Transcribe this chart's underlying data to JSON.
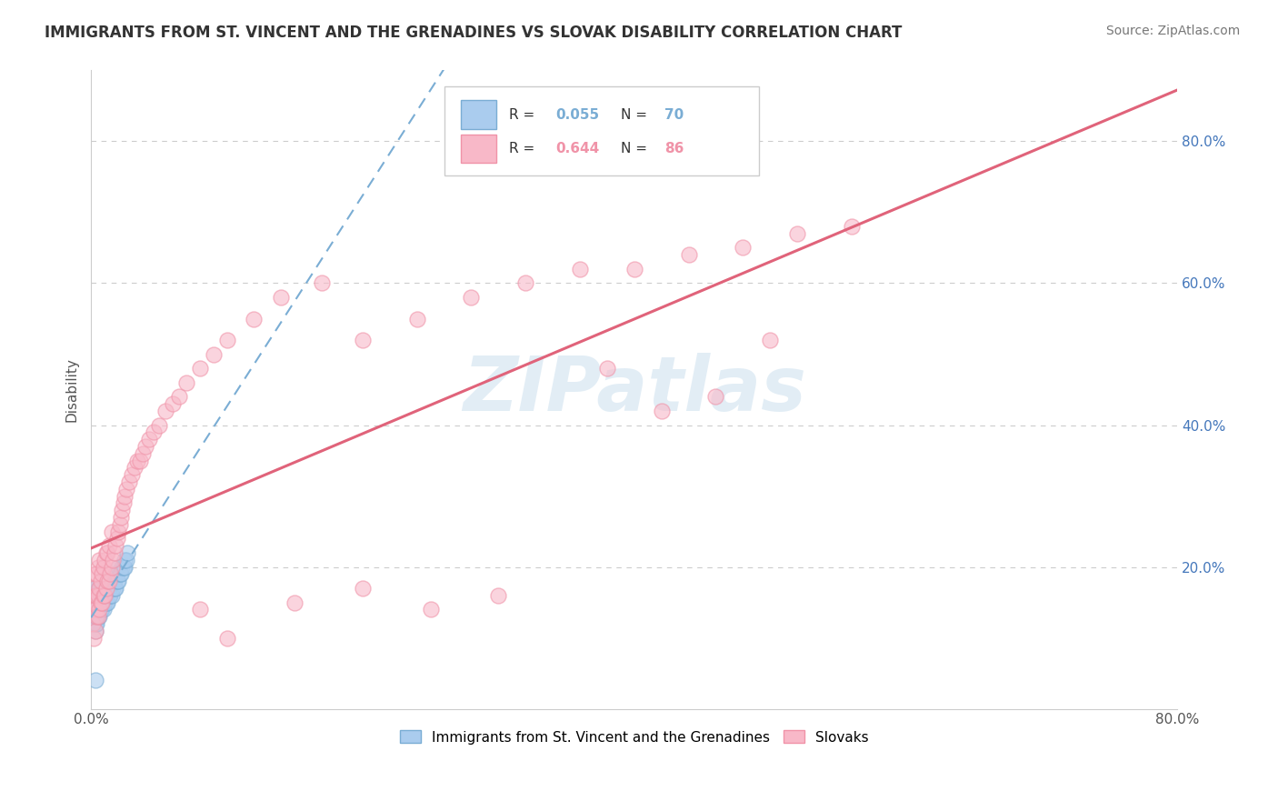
{
  "title": "IMMIGRANTS FROM ST. VINCENT AND THE GRENADINES VS SLOVAK DISABILITY CORRELATION CHART",
  "source": "Source: ZipAtlas.com",
  "ylabel": "Disability",
  "blue_label": "Immigrants from St. Vincent and the Grenadines",
  "pink_label": "Slovaks",
  "blue_R": 0.055,
  "blue_N": 70,
  "pink_R": 0.644,
  "pink_N": 86,
  "blue_color": "#7aadd4",
  "pink_color": "#f093a8",
  "trend_blue_color": "#7aadd4",
  "trend_pink_color": "#e0637a",
  "xlim": [
    0.0,
    0.8
  ],
  "ylim": [
    0.0,
    0.9
  ],
  "xtick_vals": [
    0.0,
    0.8
  ],
  "xtick_labels": [
    "0.0%",
    "80.0%"
  ],
  "ytick_vals": [
    0.2,
    0.4,
    0.6,
    0.8
  ],
  "ytick_labels": [
    "20.0%",
    "40.0%",
    "60.0%",
    "80.0%"
  ],
  "watermark": "ZIPatlas",
  "background_color": "#ffffff",
  "grid_color": "#cccccc",
  "blue_x": [
    0.001,
    0.001,
    0.002,
    0.002,
    0.002,
    0.002,
    0.002,
    0.003,
    0.003,
    0.003,
    0.003,
    0.003,
    0.003,
    0.003,
    0.004,
    0.004,
    0.004,
    0.004,
    0.004,
    0.005,
    0.005,
    0.005,
    0.005,
    0.005,
    0.006,
    0.006,
    0.006,
    0.006,
    0.007,
    0.007,
    0.007,
    0.007,
    0.008,
    0.008,
    0.008,
    0.009,
    0.009,
    0.009,
    0.01,
    0.01,
    0.01,
    0.011,
    0.011,
    0.012,
    0.012,
    0.013,
    0.013,
    0.014,
    0.014,
    0.015,
    0.015,
    0.016,
    0.016,
    0.017,
    0.017,
    0.018,
    0.018,
    0.019,
    0.019,
    0.02,
    0.02,
    0.021,
    0.022,
    0.023,
    0.024,
    0.025,
    0.025,
    0.026,
    0.027,
    0.003
  ],
  "blue_y": [
    0.14,
    0.16,
    0.12,
    0.13,
    0.14,
    0.15,
    0.16,
    0.11,
    0.12,
    0.13,
    0.14,
    0.15,
    0.16,
    0.17,
    0.12,
    0.13,
    0.14,
    0.15,
    0.16,
    0.13,
    0.14,
    0.15,
    0.16,
    0.17,
    0.13,
    0.14,
    0.15,
    0.16,
    0.14,
    0.15,
    0.16,
    0.17,
    0.14,
    0.15,
    0.16,
    0.14,
    0.15,
    0.16,
    0.15,
    0.16,
    0.17,
    0.15,
    0.17,
    0.15,
    0.17,
    0.16,
    0.17,
    0.16,
    0.18,
    0.16,
    0.18,
    0.17,
    0.18,
    0.17,
    0.18,
    0.17,
    0.19,
    0.18,
    0.19,
    0.18,
    0.2,
    0.19,
    0.19,
    0.2,
    0.2,
    0.2,
    0.21,
    0.21,
    0.22,
    0.04
  ],
  "pink_x": [
    0.001,
    0.001,
    0.002,
    0.002,
    0.002,
    0.003,
    0.003,
    0.003,
    0.003,
    0.004,
    0.004,
    0.004,
    0.005,
    0.005,
    0.005,
    0.006,
    0.006,
    0.006,
    0.007,
    0.007,
    0.008,
    0.008,
    0.009,
    0.009,
    0.01,
    0.01,
    0.011,
    0.011,
    0.012,
    0.012,
    0.013,
    0.013,
    0.014,
    0.015,
    0.015,
    0.016,
    0.017,
    0.018,
    0.019,
    0.02,
    0.021,
    0.022,
    0.023,
    0.024,
    0.025,
    0.026,
    0.028,
    0.03,
    0.032,
    0.034,
    0.036,
    0.038,
    0.04,
    0.043,
    0.046,
    0.05,
    0.055,
    0.06,
    0.065,
    0.07,
    0.08,
    0.09,
    0.1,
    0.12,
    0.14,
    0.17,
    0.2,
    0.24,
    0.28,
    0.32,
    0.36,
    0.4,
    0.44,
    0.48,
    0.52,
    0.56,
    0.38,
    0.42,
    0.46,
    0.5,
    0.1,
    0.08,
    0.15,
    0.2,
    0.25,
    0.3
  ],
  "pink_y": [
    0.12,
    0.15,
    0.1,
    0.14,
    0.17,
    0.11,
    0.14,
    0.16,
    0.19,
    0.13,
    0.16,
    0.19,
    0.13,
    0.16,
    0.2,
    0.14,
    0.17,
    0.21,
    0.15,
    0.18,
    0.15,
    0.19,
    0.16,
    0.2,
    0.16,
    0.21,
    0.17,
    0.22,
    0.18,
    0.22,
    0.18,
    0.23,
    0.19,
    0.2,
    0.25,
    0.21,
    0.22,
    0.23,
    0.24,
    0.25,
    0.26,
    0.27,
    0.28,
    0.29,
    0.3,
    0.31,
    0.32,
    0.33,
    0.34,
    0.35,
    0.35,
    0.36,
    0.37,
    0.38,
    0.39,
    0.4,
    0.42,
    0.43,
    0.44,
    0.46,
    0.48,
    0.5,
    0.52,
    0.55,
    0.58,
    0.6,
    0.52,
    0.55,
    0.58,
    0.6,
    0.62,
    0.62,
    0.64,
    0.65,
    0.67,
    0.68,
    0.48,
    0.42,
    0.44,
    0.52,
    0.1,
    0.14,
    0.15,
    0.17,
    0.14,
    0.16
  ]
}
